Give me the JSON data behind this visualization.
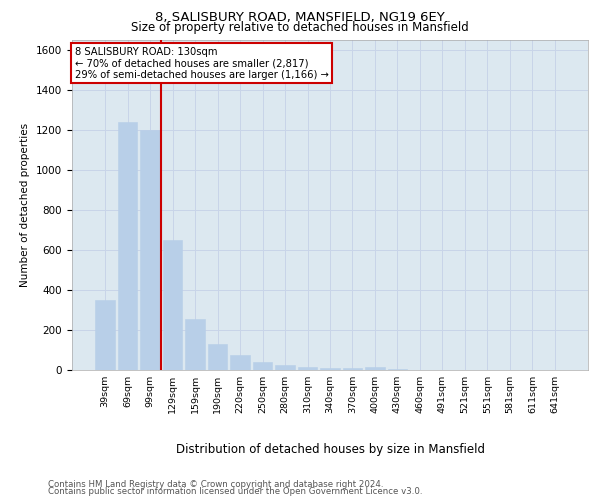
{
  "title_line1": "8, SALISBURY ROAD, MANSFIELD, NG19 6EY",
  "title_line2": "Size of property relative to detached houses in Mansfield",
  "xlabel": "Distribution of detached houses by size in Mansfield",
  "ylabel": "Number of detached properties",
  "categories": [
    "39sqm",
    "69sqm",
    "99sqm",
    "129sqm",
    "159sqm",
    "190sqm",
    "220sqm",
    "250sqm",
    "280sqm",
    "310sqm",
    "340sqm",
    "370sqm",
    "400sqm",
    "430sqm",
    "460sqm",
    "491sqm",
    "521sqm",
    "551sqm",
    "581sqm",
    "611sqm",
    "641sqm"
  ],
  "values": [
    350,
    1240,
    1200,
    650,
    255,
    130,
    75,
    40,
    25,
    15,
    10,
    8,
    15,
    5,
    0,
    0,
    0,
    0,
    0,
    0,
    0
  ],
  "bar_color": "#b8cfe8",
  "bar_edgecolor": "#b8cfe8",
  "red_line_x": 2.5,
  "annotation_title": "8 SALISBURY ROAD: 130sqm",
  "annotation_line2": "← 70% of detached houses are smaller (2,817)",
  "annotation_line3": "29% of semi-detached houses are larger (1,166) →",
  "annotation_box_facecolor": "#ffffff",
  "annotation_border_color": "#cc0000",
  "red_line_color": "#cc0000",
  "ylim": [
    0,
    1650
  ],
  "yticks": [
    0,
    200,
    400,
    600,
    800,
    1000,
    1200,
    1400,
    1600
  ],
  "grid_color": "#c8d4e8",
  "bg_color": "#dce8f0",
  "footnote_line1": "Contains HM Land Registry data © Crown copyright and database right 2024.",
  "footnote_line2": "Contains public sector information licensed under the Open Government Licence v3.0."
}
